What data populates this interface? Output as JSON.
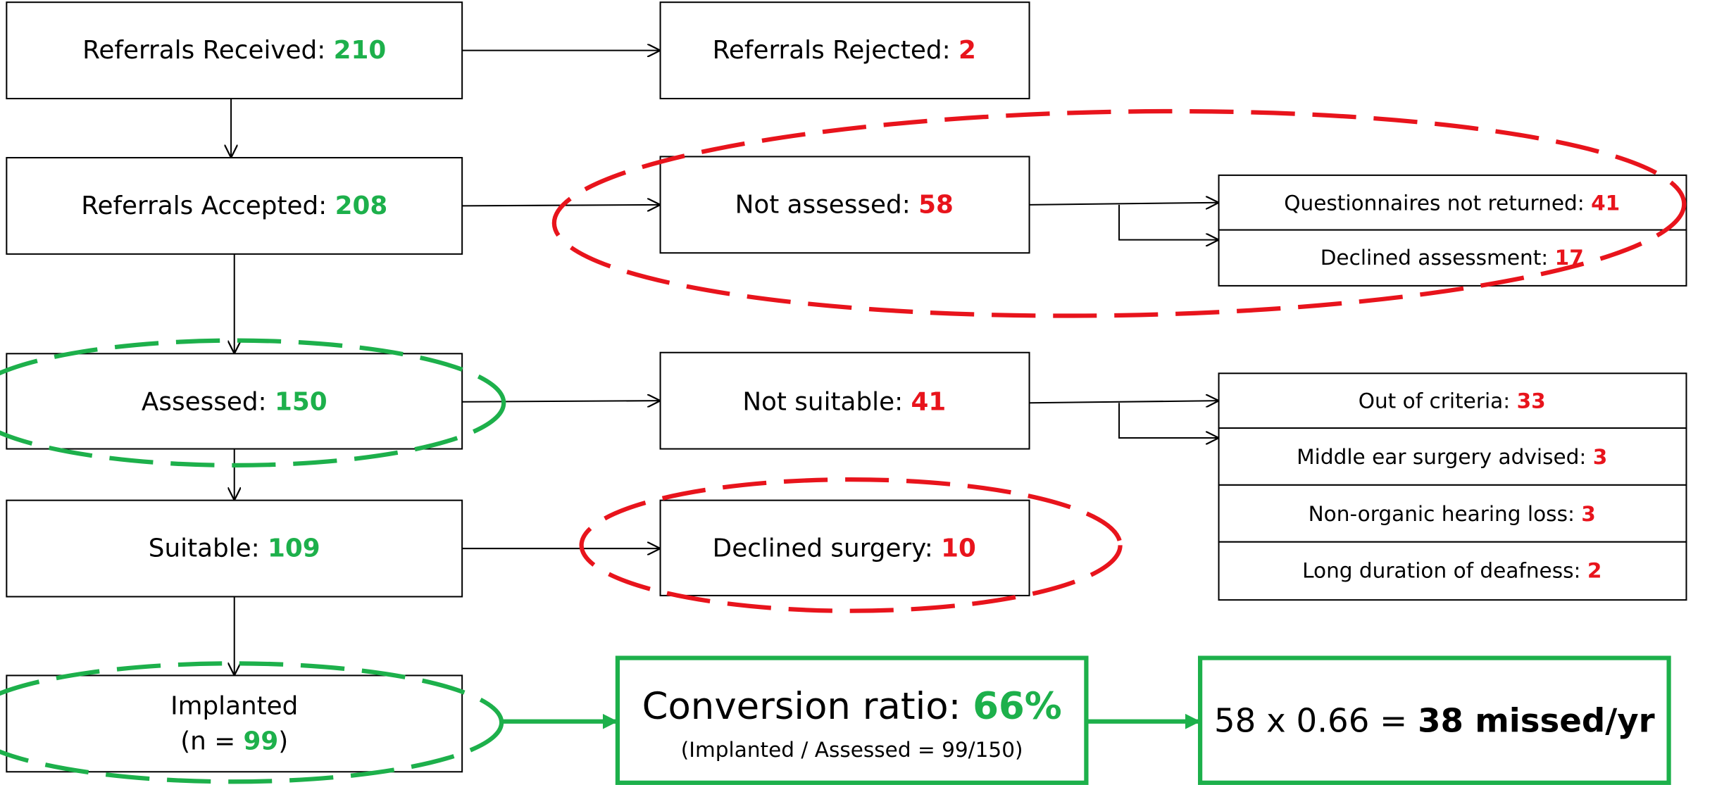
{
  "nodes": {
    "received": {
      "label": "Referrals Received:",
      "value": 210
    },
    "rejected": {
      "label": "Referrals Rejected:",
      "value": 2
    },
    "accepted": {
      "label": "Referrals Accepted:",
      "value": 208
    },
    "not_assessed": {
      "label": "Not assessed:",
      "value": 58
    },
    "questionnaires": {
      "label": "Questionnaires not returned:",
      "value": 41
    },
    "declined_assessment": {
      "label": "Declined assessment:",
      "value": 17
    },
    "assessed": {
      "label": "Assessed:",
      "value": 150
    },
    "not_suitable": {
      "label": "Not suitable:",
      "value": 41
    },
    "out_of_criteria": {
      "label": "Out of criteria:",
      "value": 33
    },
    "middle_ear": {
      "label": "Middle ear surgery advised:",
      "value": 3
    },
    "non_organic": {
      "label": "Non-organic hearing loss:",
      "value": 3
    },
    "long_duration": {
      "label": "Long duration of deafness:",
      "value": 2
    },
    "suitable": {
      "label": "Suitable:",
      "value": 109
    },
    "declined_surgery": {
      "label": "Declined surgery:",
      "value": 10
    },
    "implanted": {
      "label": "Implanted",
      "prefix": "(n =",
      "value": 99,
      "suffix": ")"
    },
    "conversion": {
      "label": "Conversion ratio:",
      "value": "66%",
      "note": "(Implanted / Assessed = 99/150)"
    },
    "missed": {
      "label": "58 x 0.66 =",
      "value": "38 missed/yr"
    }
  }
}
